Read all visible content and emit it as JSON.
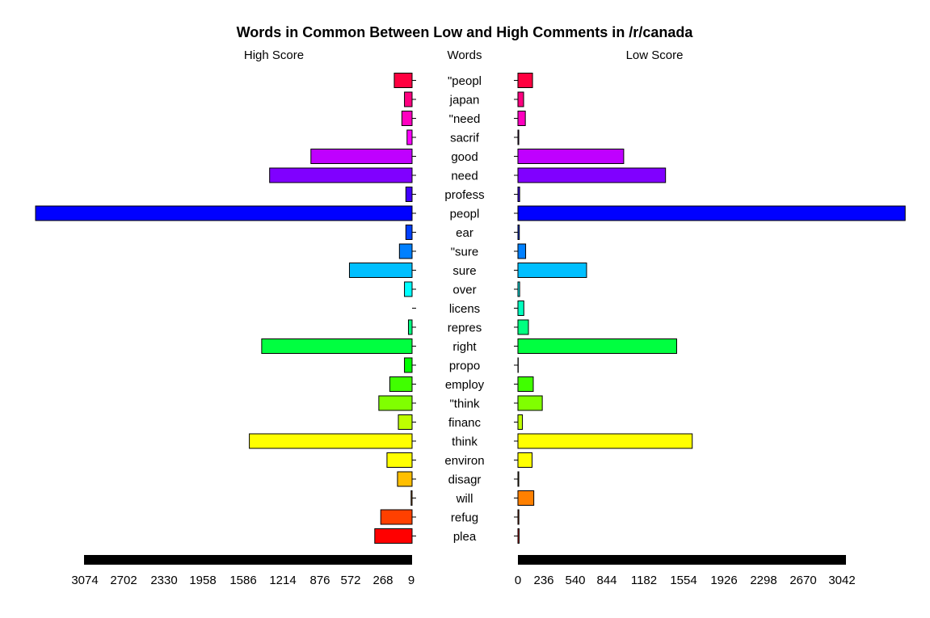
{
  "chart_data": {
    "type": "bar",
    "title": "Words in Common Between Low and High Comments in /r/canada",
    "left_header": "High Score",
    "center_header": "Words",
    "right_header": "Low Score",
    "words": [
      "\"peopl",
      "japan",
      "\"need",
      "sacrif",
      "good",
      "need",
      "profess",
      "peopl",
      "ear",
      "\"sure",
      "sure",
      "over",
      "licens",
      "repres",
      "right",
      "propo",
      "employ",
      "\"think",
      "financ",
      "think",
      "environ",
      "disagr",
      "will",
      "refug",
      "plea"
    ],
    "series": [
      {
        "name": "High Score",
        "values": [
          166,
          71,
          95,
          47,
          943,
          1328,
          58,
          3510,
          58,
          118,
          584,
          71,
          0,
          34,
          1402,
          71,
          208,
          310,
          128,
          1517,
          234,
          136,
          9,
          292,
          348
        ]
      },
      {
        "name": "Low Score",
        "values": [
          136,
          53,
          69,
          8,
          986,
          1376,
          16,
          3610,
          13,
          72,
          640,
          16,
          55,
          98,
          1480,
          3,
          143,
          227,
          42,
          1625,
          132,
          8,
          148,
          9,
          11
        ]
      }
    ],
    "colors": [
      "#FF0040",
      "#FF0080",
      "#FF00BF",
      "#FF00FF",
      "#BF00FF",
      "#8000FF",
      "#4000FF",
      "#0000FF",
      "#0040FF",
      "#0080FF",
      "#00BFFF",
      "#00FFFF",
      "#00FFBF",
      "#00FF80",
      "#00FF40",
      "#00FF00",
      "#40FF00",
      "#80FF00",
      "#BFFF00",
      "#FFFF00",
      "#FFFF00",
      "#FFBF00",
      "#FF8000",
      "#FF4000",
      "#FF0000"
    ],
    "left_axis": {
      "tick_labels": [
        "3074",
        "2702",
        "2330",
        "1958",
        "1586",
        "1214",
        "876",
        "572",
        "268",
        "9"
      ]
    },
    "right_axis": {
      "tick_labels": [
        "0",
        "236",
        "540",
        "844",
        "1182",
        "1554",
        "1926",
        "2298",
        "2670",
        "3042"
      ]
    }
  }
}
